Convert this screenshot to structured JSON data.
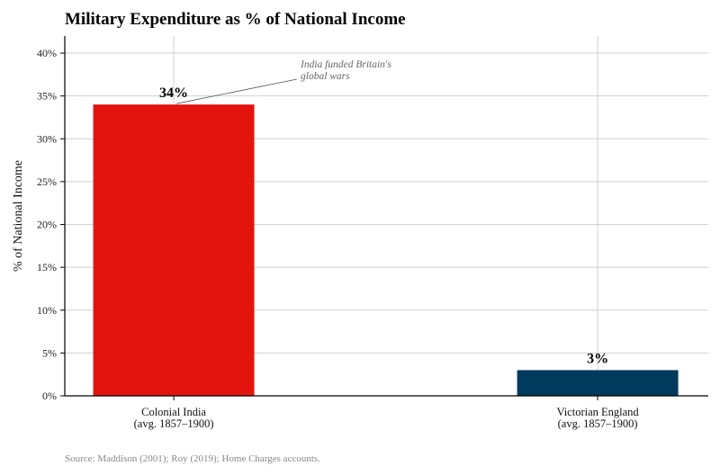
{
  "chart_data": {
    "type": "bar",
    "title": "Military Expenditure as % of National Income",
    "ylabel": "% of National Income",
    "xlabel": "",
    "categories": [
      [
        "Colonial India",
        "(avg. 1857–1900)"
      ],
      [
        "Victorian England",
        "(avg. 1857–1900)"
      ]
    ],
    "values": [
      34,
      3
    ],
    "data_labels": [
      "34%",
      "3%"
    ],
    "colors": [
      "#e3140e",
      "#003a5c"
    ],
    "ylim": [
      0,
      42
    ],
    "yticks": [
      0,
      5,
      10,
      15,
      20,
      25,
      30,
      35,
      40
    ],
    "ytick_labels": [
      "0%",
      "5%",
      "10%",
      "15%",
      "20%",
      "25%",
      "30%",
      "35%",
      "40%"
    ],
    "grid": true,
    "annotation": {
      "lines": [
        "India funded Britain's",
        "global wars"
      ],
      "target_category": 0,
      "target_value": 34
    },
    "source": "Source: Maddison (2001); Roy (2019); Home Charges accounts."
  }
}
